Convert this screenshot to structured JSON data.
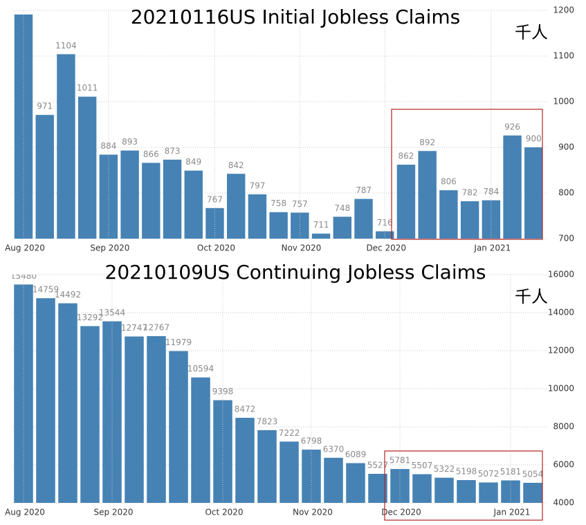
{
  "chart_data": [
    {
      "type": "bar",
      "title": "20210116US Initial Jobless Claims",
      "unit": "千人",
      "categories": [
        "Aug 2020",
        null,
        null,
        null,
        "Sep 2020",
        null,
        null,
        null,
        null,
        "Oct 2020",
        null,
        null,
        null,
        "Nov 2020",
        null,
        null,
        null,
        "Dec 2020",
        null,
        null,
        null,
        null,
        "Jan 2021",
        null,
        null
      ],
      "values": [
        1191,
        971,
        1104,
        1011,
        884,
        893,
        866,
        873,
        849,
        767,
        842,
        797,
        758,
        757,
        711,
        748,
        787,
        716,
        862,
        892,
        806,
        782,
        784,
        926,
        900
      ],
      "color": "#4682b4",
      "ylim": [
        700,
        1200
      ],
      "yticks": [
        700,
        800,
        900,
        1000,
        1100,
        1200
      ],
      "grid": true
    },
    {
      "type": "bar",
      "title": "20210109US Continuing Jobless Claims",
      "unit": "千人",
      "categories": [
        "Aug 2020",
        null,
        null,
        null,
        "Sep 2020",
        null,
        null,
        null,
        null,
        "Oct 2020",
        null,
        null,
        null,
        "Nov 2020",
        null,
        null,
        null,
        "Dec 2020",
        null,
        null,
        null,
        null,
        "Jan 2021",
        null
      ],
      "values": [
        15480,
        14759,
        14492,
        13292,
        13544,
        12747,
        12767,
        11979,
        10594,
        9398,
        8472,
        7823,
        7222,
        6798,
        6370,
        6089,
        5527,
        5781,
        5507,
        5322,
        5198,
        5072,
        5181,
        5054
      ],
      "color": "#4682b4",
      "ylim": [
        4000,
        16000
      ],
      "yticks": [
        4000,
        6000,
        8000,
        10000,
        12000,
        14000,
        16000
      ],
      "grid": true
    }
  ]
}
